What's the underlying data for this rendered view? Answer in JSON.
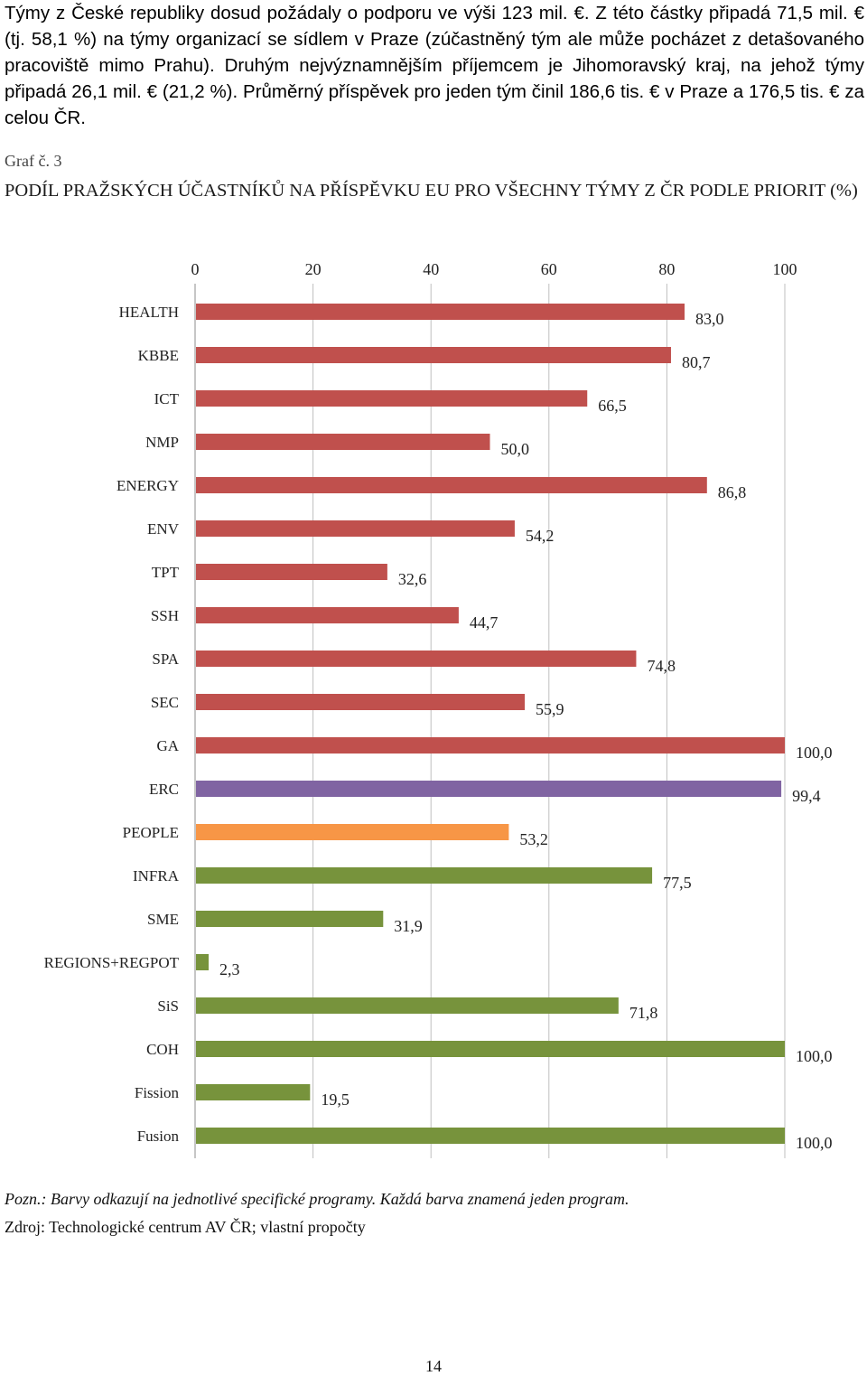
{
  "intro_text": "Týmy z České republiky dosud požádaly o podporu ve výši 123 mil. €. Z této částky připadá 71,5 mil. € (tj. 58,1 %) na týmy organizací se sídlem v Praze (zúčastněný tým ale může pocházet z detašovaného pracoviště mimo Prahu). Druhým nejvýznamnějším příjemcem je Jihomoravský kraj, na jehož týmy připadá 26,1 mil. € (21,2 %). Průměrný příspěvek pro jeden tým činil 186,6 tis. € v Praze a 176,5 tis. € za celou ČR.",
  "graf_label": "Graf č. 3",
  "chart_title": "PODÍL PRAŽSKÝCH ÚČASTNÍKŮ NA PŘÍSPĚVKU EU PRO VŠECHNY TÝMY Z ČR PODLE PRIORIT (%)",
  "note": "Pozn.: Barvy odkazují na jednotlivé specifické programy. Každá barva znamená jeden program.",
  "source": "Zdroj: Technologické centrum AV ČR; vlastní propočty",
  "page_number": "14",
  "colors": {
    "red": "#c0504d",
    "purple": "#8064a2",
    "orange": "#f79646",
    "green": "#77933c",
    "grid": "#bfbfbf"
  },
  "chart_data": {
    "type": "bar",
    "orientation": "horizontal",
    "xlim": [
      0,
      100
    ],
    "x_ticks": [
      "0",
      "20",
      "40",
      "60",
      "80",
      "100"
    ],
    "x_axis_position": "top",
    "grid": true,
    "categories": [
      "HEALTH",
      "KBBE",
      "ICT",
      "NMP",
      "ENERGY",
      "ENV",
      "TPT",
      "SSH",
      "SPA",
      "SEC",
      "GA",
      "ERC",
      "PEOPLE",
      "INFRA",
      "SME",
      "REGIONS+REGPOT",
      "SiS",
      "COH",
      "Fission",
      "Fusion"
    ],
    "values": [
      83.0,
      80.7,
      66.5,
      50.0,
      86.8,
      54.2,
      32.6,
      44.7,
      74.8,
      55.9,
      100.0,
      99.4,
      53.2,
      77.5,
      31.9,
      2.3,
      71.8,
      100.0,
      19.5,
      100.0
    ],
    "value_labels": [
      "83,0",
      "80,7",
      "66,5",
      "50,0",
      "86,8",
      "54,2",
      "32,6",
      "44,7",
      "74,8",
      "55,9",
      "100,0",
      "99,4",
      "53,2",
      "77,5",
      "31,9",
      "2,3",
      "71,8",
      "100,0",
      "19,5",
      "100,0"
    ],
    "bar_colors": [
      "red",
      "red",
      "red",
      "red",
      "red",
      "red",
      "red",
      "red",
      "red",
      "red",
      "red",
      "purple",
      "orange",
      "green",
      "green",
      "green",
      "green",
      "green",
      "green",
      "green"
    ]
  }
}
